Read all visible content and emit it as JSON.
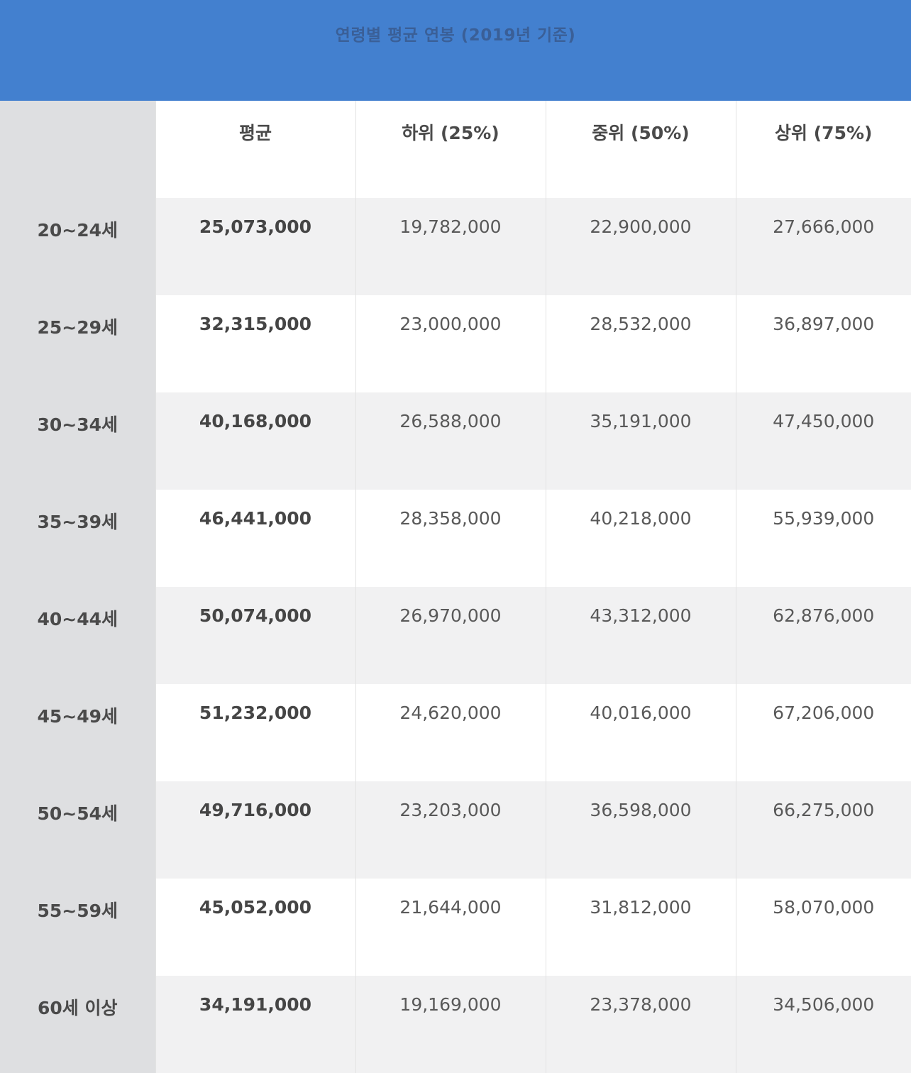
{
  "title": "연령별 평균 연봉 (2019년 기준)",
  "columns": [
    "",
    "평균",
    "하위 (25%)",
    "중위 (50%)",
    "상위 (75%)"
  ],
  "rows": [
    {
      "age": "20~24세",
      "avg": "25,073,000",
      "p25": "19,782,000",
      "p50": "22,900,000",
      "p75": "27,666,000"
    },
    {
      "age": "25~29세",
      "avg": "32,315,000",
      "p25": "23,000,000",
      "p50": "28,532,000",
      "p75": "36,897,000"
    },
    {
      "age": "30~34세",
      "avg": "40,168,000",
      "p25": "26,588,000",
      "p50": "35,191,000",
      "p75": "47,450,000"
    },
    {
      "age": "35~39세",
      "avg": "46,441,000",
      "p25": "28,358,000",
      "p50": "40,218,000",
      "p75": "55,939,000"
    },
    {
      "age": "40~44세",
      "avg": "50,074,000",
      "p25": "26,970,000",
      "p50": "43,312,000",
      "p75": "62,876,000"
    },
    {
      "age": "45~49세",
      "avg": "51,232,000",
      "p25": "24,620,000",
      "p50": "40,016,000",
      "p75": "67,206,000"
    },
    {
      "age": "50~54세",
      "avg": "49,716,000",
      "p25": "23,203,000",
      "p50": "36,598,000",
      "p75": "66,275,000"
    },
    {
      "age": "55~59세",
      "avg": "45,052,000",
      "p25": "21,644,000",
      "p50": "31,812,000",
      "p75": "58,070,000"
    },
    {
      "age": "60세 이상",
      "avg": "34,191,000",
      "p25": "19,169,000",
      "p50": "23,378,000",
      "p75": "34,506,000"
    }
  ],
  "colors": {
    "banner": "#4380cf",
    "banner_text": "#3a5f97",
    "age_column": "#dedfe1",
    "row_alt": "#f1f1f2"
  }
}
